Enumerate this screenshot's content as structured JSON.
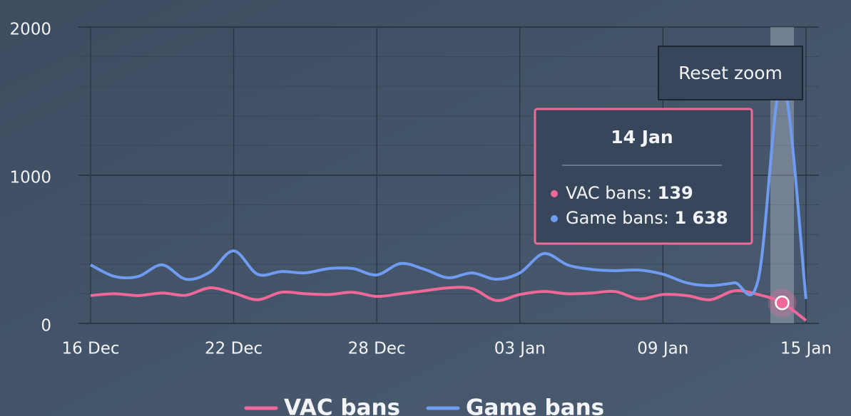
{
  "chart_data": {
    "type": "line",
    "categories": [
      "16 Dec",
      null,
      null,
      null,
      null,
      null,
      "22 Dec",
      null,
      null,
      null,
      null,
      null,
      "28 Dec",
      null,
      null,
      null,
      null,
      null,
      "03 Jan",
      null,
      null,
      null,
      null,
      null,
      "09 Jan",
      null,
      null,
      null,
      null,
      null,
      "15 Jan"
    ],
    "series": [
      {
        "name": "VAC bans",
        "color": "#f0689a",
        "values": [
          188,
          200,
          188,
          205,
          190,
          240,
          205,
          160,
          210,
          200,
          195,
          210,
          182,
          200,
          220,
          240,
          235,
          155,
          195,
          215,
          200,
          205,
          215,
          165,
          195,
          188,
          160,
          220,
          195,
          139,
          20
        ]
      },
      {
        "name": "Game bans",
        "color": "#6f9cf2",
        "values": [
          395,
          317,
          317,
          395,
          298,
          346,
          490,
          332,
          350,
          341,
          370,
          370,
          327,
          404,
          365,
          308,
          341,
          298,
          341,
          471,
          395,
          365,
          356,
          360,
          332,
          274,
          255,
          274,
          298,
          1638,
          165
        ]
      }
    ],
    "ylim": [
      0,
      2000
    ],
    "yticks": [
      0,
      1000,
      2000
    ],
    "grid": true,
    "tooltip": {
      "title": "14 Jan",
      "items": [
        {
          "label": "VAC bans:",
          "value": "139"
        },
        {
          "label": "Game bans:",
          "value": "1 638"
        }
      ]
    },
    "button": "Reset zoom"
  }
}
